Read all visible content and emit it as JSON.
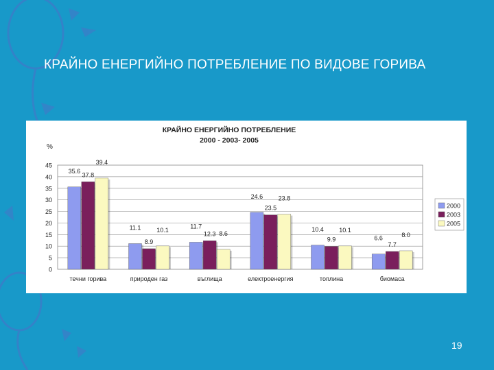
{
  "slide": {
    "title": "КРАЙНО ЕНЕРГИЙНО ПОТРЕБЛЕНИЕ ПО ВИДОВЕ ГОРИВА",
    "page_number": "19"
  },
  "colors": {
    "background": "#1899c9",
    "decoration": "#3a7fc8",
    "series_2000": "#8e9bef",
    "series_2003": "#7a1f5c",
    "series_2005": "#fbf9c0"
  },
  "chart_data": {
    "type": "bar",
    "title": "КРАЙНО ЕНЕРГИЙНО ПОТРЕБЛЕНИЕ",
    "subtitle": "2000 - 2003- 2005",
    "ylabel": "%",
    "xlabel": "",
    "ylim": [
      0,
      45
    ],
    "yticks": [
      0,
      5,
      10,
      15,
      20,
      25,
      30,
      35,
      40,
      45
    ],
    "grid": true,
    "legend_position": "right",
    "categories": [
      "течни горива",
      "природен газ",
      "въглища",
      "електроенергия",
      "топлина",
      "биомаса"
    ],
    "series": [
      {
        "name": "2000",
        "values": [
          35.6,
          11.1,
          11.7,
          24.6,
          10.4,
          6.6
        ]
      },
      {
        "name": "2003",
        "values": [
          37.8,
          8.9,
          12.3,
          23.5,
          9.9,
          7.7
        ]
      },
      {
        "name": "2005",
        "values": [
          39.4,
          10.1,
          8.6,
          23.8,
          10.1,
          8.0
        ]
      }
    ]
  }
}
